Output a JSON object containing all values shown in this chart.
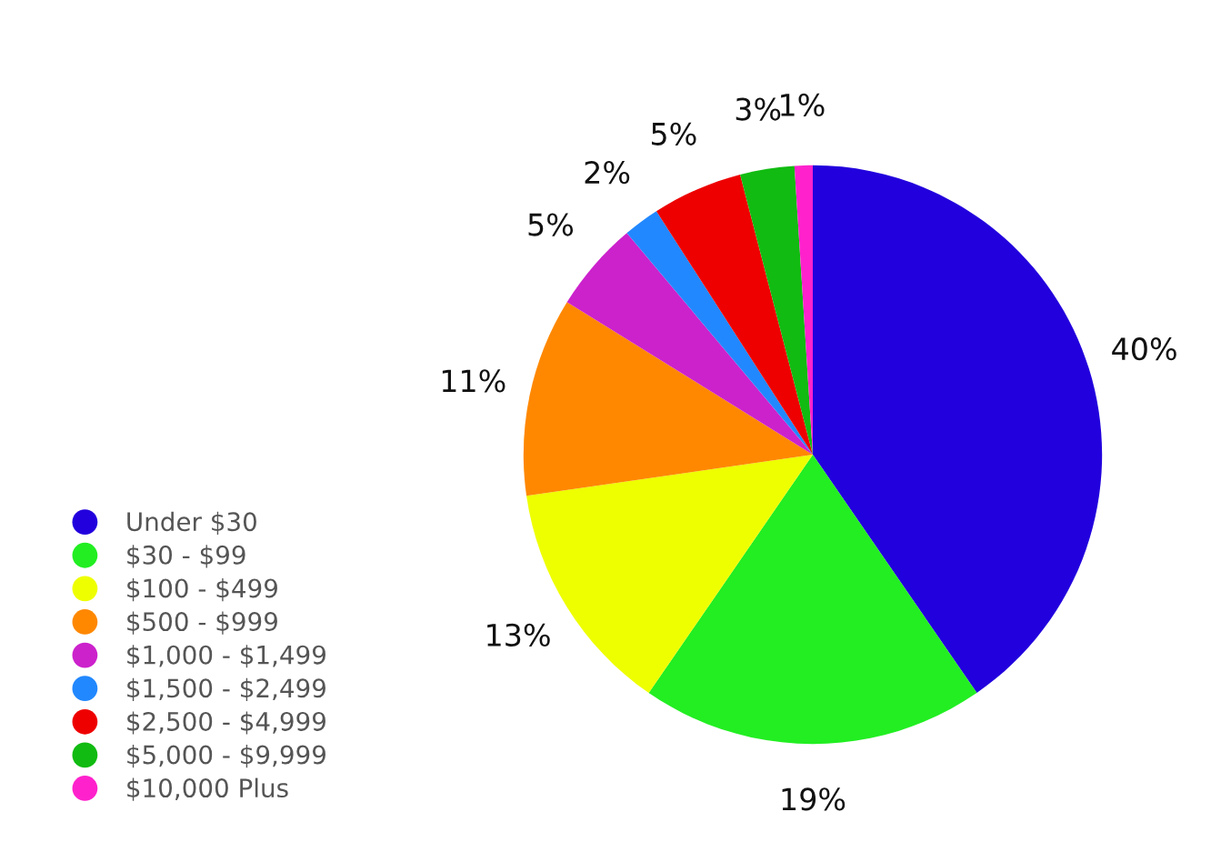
{
  "chart_data": {
    "type": "pie",
    "categories": [
      "Under $30",
      "$30 - $99",
      "$100 - $499",
      "$500 - $999",
      "$1,000 - $1,499",
      "$1,500 - $2,499",
      "$2,500 - $4,999",
      "$5,000 - $9,999",
      "$10,000 Plus"
    ],
    "values": [
      40,
      19,
      13,
      11,
      5,
      2,
      5,
      3,
      1
    ],
    "colors": [
      "#2200dd",
      "#22ee22",
      "#eeff00",
      "#ff8800",
      "#cc22cc",
      "#2288ff",
      "#ee0000",
      "#11bb11",
      "#ff22cc"
    ],
    "value_labels": [
      "40%",
      "19%",
      "13%",
      "11%",
      "5%",
      "2%",
      "5%",
      "3%",
      "1%"
    ],
    "legend": "bottom left"
  }
}
